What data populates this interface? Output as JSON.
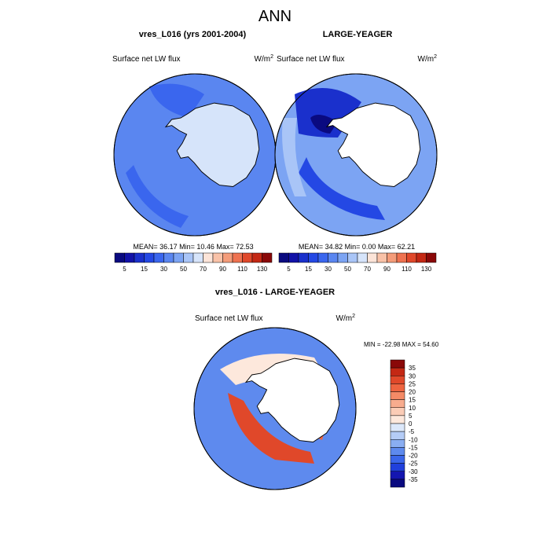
{
  "title": "ANN",
  "panels": [
    {
      "title": "vres_L016 (yrs 2001-2004)",
      "variable": "Surface net LW flux",
      "units": "W/m",
      "units_power": "2",
      "stats": "MEAN=  36.17  Min=  10.46  Max=  72.53"
    },
    {
      "title": "LARGE-YEAGER",
      "variable": "Surface net LW flux",
      "units": "W/m",
      "units_power": "2",
      "stats": "MEAN=  34.82  Min=   0.00  Max=  62.21"
    }
  ],
  "colorbar_top": {
    "labels": [
      "5",
      "15",
      "30",
      "50",
      "70",
      "90",
      "110",
      "130"
    ],
    "colors": [
      "#0a0a80",
      "#1212a8",
      "#1a30cc",
      "#2448e4",
      "#3a66ee",
      "#5a86f0",
      "#7ca4f3",
      "#a9c5f7",
      "#d6e4fa",
      "#fce4d8",
      "#f9c2a8",
      "#f49c7a",
      "#ee7250",
      "#e0482a",
      "#c42814",
      "#8a0808"
    ]
  },
  "difference": {
    "title": "vres_L016 - LARGE-YEAGER",
    "variable": "Surface net LW flux",
    "units": "W/m",
    "units_power": "2",
    "stats": "MIN = -22.98 MAX =  54.60"
  },
  "colorbar_diff": {
    "labels": [
      "35",
      "30",
      "25",
      "20",
      "15",
      "10",
      "5",
      "0",
      "-5",
      "-10",
      "-15",
      "-20",
      "-25",
      "-30",
      "-35"
    ],
    "colors": [
      "#8a0808",
      "#c42814",
      "#e0482a",
      "#ee6440",
      "#f48a66",
      "#f8ac8e",
      "#fbccb6",
      "#fde8dc",
      "#dce8fa",
      "#b4ccf6",
      "#8aaef2",
      "#5e8aee",
      "#3a66ea",
      "#2040dc",
      "#1416b0",
      "#0a0a80"
    ]
  }
}
